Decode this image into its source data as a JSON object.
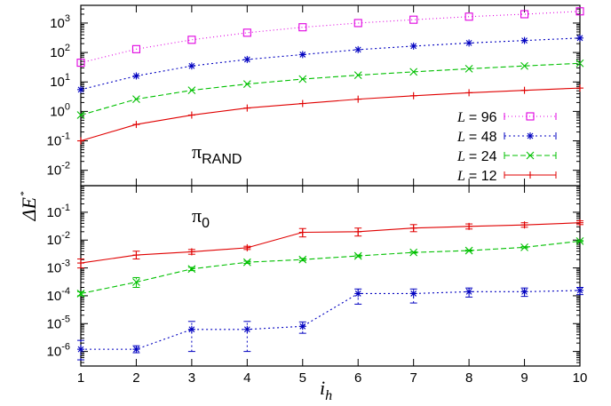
{
  "chart_data": [
    {
      "type": "line",
      "panel": "top",
      "annotation": {
        "base": "π",
        "sub": "RAND"
      },
      "yscale": "log",
      "ylim": [
        0.003,
        4000
      ],
      "yticks": [
        {
          "value": 0.01,
          "mant": "10",
          "exp": "-2"
        },
        {
          "value": 0.1,
          "mant": "10",
          "exp": "-1"
        },
        {
          "value": 1,
          "mant": "10",
          "exp": "0"
        },
        {
          "value": 10,
          "mant": "10",
          "exp": "1"
        },
        {
          "value": 100,
          "mant": "10",
          "exp": "2"
        },
        {
          "value": 1000,
          "mant": "10",
          "exp": "3"
        }
      ],
      "x": [
        1,
        2,
        3,
        4,
        5,
        6,
        7,
        8,
        9,
        10
      ],
      "legend_position": "right",
      "series": [
        {
          "name": "L = 96",
          "legend_prefix": "L",
          "legend_value": "= 96",
          "color": "#e000e0",
          "dash": "1,3",
          "marker": "square",
          "values": [
            45,
            130,
            270,
            470,
            720,
            1000,
            1300,
            1650,
            2000,
            2500
          ]
        },
        {
          "name": "L = 48",
          "legend_prefix": "L",
          "legend_value": "= 48",
          "color": "#0000c0",
          "dash": "2,3",
          "marker": "asterisk",
          "values": [
            5.5,
            16,
            35,
            58,
            85,
            125,
            165,
            210,
            255,
            310
          ]
        },
        {
          "name": "L = 24",
          "legend_prefix": "L",
          "legend_value": "= 24",
          "color": "#00c000",
          "dash": "6,3",
          "marker": "x",
          "values": [
            0.75,
            2.6,
            5.2,
            8.5,
            12.5,
            17,
            22,
            28,
            35,
            43
          ]
        },
        {
          "name": "L = 12",
          "legend_prefix": "L",
          "legend_value": "= 12",
          "color": "#e00000",
          "dash": "",
          "marker": "plus",
          "values": [
            0.1,
            0.36,
            0.75,
            1.3,
            1.85,
            2.6,
            3.4,
            4.3,
            5.2,
            6.2
          ]
        }
      ]
    },
    {
      "type": "line",
      "panel": "bottom",
      "annotation": {
        "base": "π",
        "sub": "0"
      },
      "yscale": "log",
      "ylim": [
        3e-07,
        0.9
      ],
      "yticks": [
        {
          "value": 1e-06,
          "mant": "10",
          "exp": "-6"
        },
        {
          "value": 1e-05,
          "mant": "10",
          "exp": "-5"
        },
        {
          "value": 0.0001,
          "mant": "10",
          "exp": "-4"
        },
        {
          "value": 0.001,
          "mant": "10",
          "exp": "-3"
        },
        {
          "value": 0.01,
          "mant": "10",
          "exp": "-2"
        },
        {
          "value": 0.1,
          "mant": "10",
          "exp": "-1"
        }
      ],
      "x": [
        1,
        2,
        3,
        4,
        5,
        6,
        7,
        8,
        9,
        10
      ],
      "series": [
        {
          "name": "L = 12",
          "color": "#e00000",
          "dash": "",
          "marker": "plus",
          "values": [
            0.0015,
            0.0029,
            0.0038,
            0.0053,
            0.019,
            0.02,
            0.027,
            0.031,
            0.035,
            0.042
          ],
          "err_low": [
            0.001,
            0.0021,
            0.0031,
            0.0046,
            0.013,
            0.014,
            0.02,
            0.025,
            0.029,
            0.036
          ],
          "err_high": [
            0.0021,
            0.004,
            0.0046,
            0.006,
            0.026,
            0.027,
            0.036,
            0.038,
            0.042,
            0.049
          ]
        },
        {
          "name": "L = 24",
          "color": "#00c000",
          "dash": "6,3",
          "marker": "x",
          "values": [
            0.00012,
            0.00031,
            0.00092,
            0.0016,
            0.002,
            0.0027,
            0.0036,
            0.0042,
            0.0055,
            0.0092
          ],
          "err_low": [
            0.0001,
            0.0002,
            0.0008,
            0.00145,
            0.0018,
            0.0025,
            0.0034,
            0.004,
            0.0052,
            0.0088
          ],
          "err_high": [
            0.00014,
            0.00045,
            0.00105,
            0.00175,
            0.0022,
            0.0029,
            0.0038,
            0.0044,
            0.0058,
            0.0096
          ]
        },
        {
          "name": "L = 48",
          "color": "#0000c0",
          "dash": "2,3",
          "marker": "asterisk",
          "values": [
            1.2e-06,
            1.2e-06,
            6.2e-06,
            6.2e-06,
            8e-06,
            0.00012,
            0.00012,
            0.00014,
            0.00014,
            0.000155
          ],
          "err_low": [
            5e-07,
            9e-07,
            1e-06,
            1e-06,
            4.5e-06,
            5e-05,
            5.5e-05,
            9e-05,
            9.5e-05,
            0.00011
          ],
          "err_high": [
            2.5e-06,
            1.6e-06,
            1.2e-05,
            1.2e-05,
            1.15e-05,
            0.000175,
            0.000175,
            0.00019,
            0.00019,
            0.0002
          ]
        }
      ]
    }
  ],
  "axes": {
    "xticks": [
      "1",
      "2",
      "3",
      "4",
      "5",
      "6",
      "7",
      "8",
      "9",
      "10"
    ],
    "ylabel": {
      "main": "ΔE",
      "sup": "*"
    },
    "xlabel": {
      "main": "i",
      "sub": "h"
    }
  }
}
